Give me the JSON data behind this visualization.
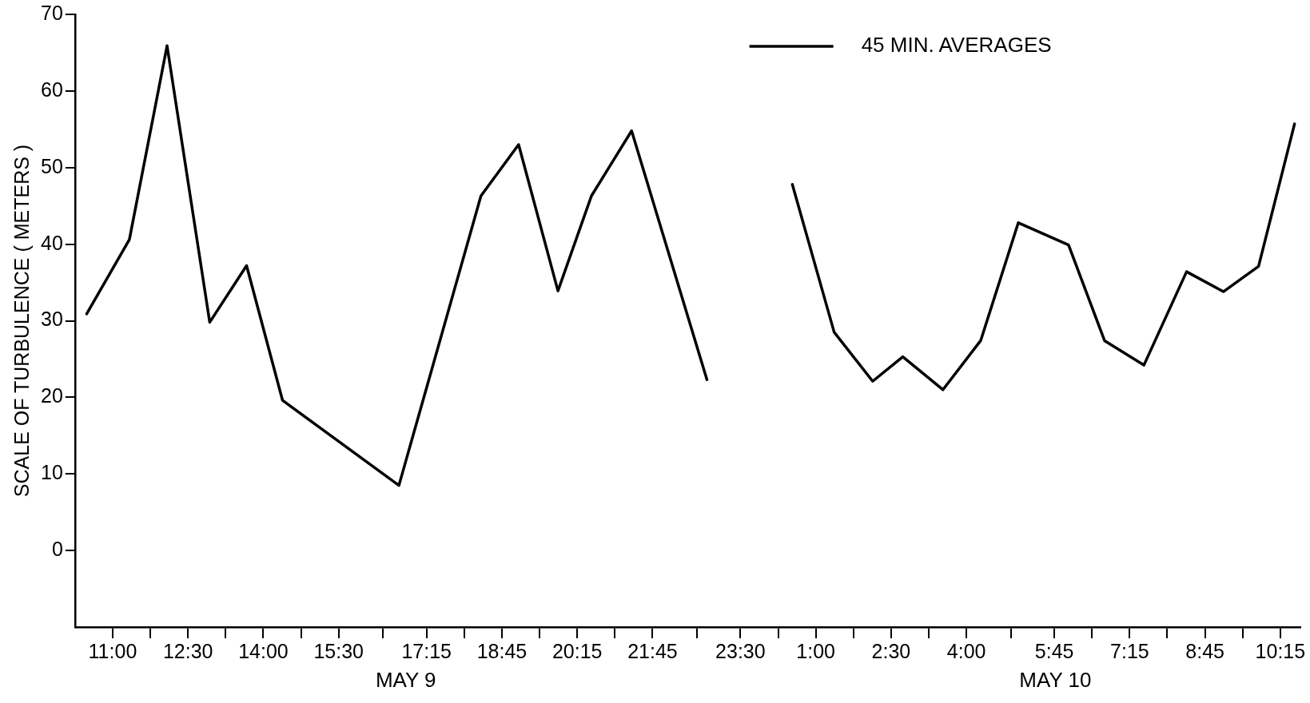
{
  "chart_data": {
    "type": "line",
    "ylabel": "SCALE OF TURBULENCE ( METERS )",
    "annotations": [
      "MAY 9",
      "MAY 10"
    ],
    "x": [
      "--05-09T10:29",
      "--05-09T11:20",
      "--05-09T12:05",
      "--05-09T12:56",
      "--05-09T13:40",
      "--05-09T14:23",
      "--05-09T16:42",
      "--05-09T18:20",
      "--05-09T19:05",
      "--05-09T19:52",
      "--05-09T20:32",
      "--05-09T21:20",
      "--05-09T22:50",
      "--05-09T23:42",
      "--05-10T00:32",
      "--05-10T01:22",
      "--05-10T02:08",
      "--05-10T02:44",
      "--05-10T03:32",
      "--05-10T04:17",
      "--05-10T05:02",
      "--05-10T06:02",
      "--05-10T06:45",
      "--05-10T07:32",
      "--05-10T08:23",
      "--05-10T09:07",
      "--05-10T09:49",
      "--05-10T10:32"
    ],
    "series": [
      {
        "name": "45 MIN. AVERAGES",
        "color": "#000000",
        "values": [
          30.9,
          40.6,
          65.9,
          29.8,
          37.2,
          19.6,
          8.5,
          46.3,
          53,
          33.9,
          46.3,
          54.8,
          22.3,
          null,
          47.8,
          28.5,
          22.1,
          25.3,
          21,
          27.4,
          42.8,
          39.9,
          27.4,
          24.2,
          36.4,
          33.8,
          37.1,
          55.7
        ]
      }
    ],
    "xlim": [
      "--05-09T10:15",
      "--05-10T10:39"
    ],
    "xticks": [
      {
        "value": "--05-09T11:00",
        "label": "11:00"
      },
      {
        "value": "--05-09T11:45",
        "label": null
      },
      {
        "value": "--05-09T12:30",
        "label": "12:30"
      },
      {
        "value": "--05-09T13:15",
        "label": null
      },
      {
        "value": "--05-09T14:00",
        "label": "14:00"
      },
      {
        "value": "--05-09T14:45",
        "label": null
      },
      {
        "value": "--05-09T15:30",
        "label": "15:30"
      },
      {
        "value": "--05-09T16:23",
        "label": null
      },
      {
        "value": "--05-09T17:15",
        "label": "17:15"
      },
      {
        "value": "--05-09T18:00",
        "label": null
      },
      {
        "value": "--05-09T18:45",
        "label": "18:45"
      },
      {
        "value": "--05-09T19:30",
        "label": null
      },
      {
        "value": "--05-09T20:15",
        "label": "20:15"
      },
      {
        "value": "--05-09T21:00",
        "label": null
      },
      {
        "value": "--05-09T21:45",
        "label": "21:45"
      },
      {
        "value": "--05-09T22:38",
        "label": null
      },
      {
        "value": "--05-09T23:30",
        "label": "23:30"
      },
      {
        "value": "--05-10T00:15",
        "label": null
      },
      {
        "value": "--05-10T01:00",
        "label": "1:00"
      },
      {
        "value": "--05-10T01:45",
        "label": null
      },
      {
        "value": "--05-10T02:30",
        "label": "2:30"
      },
      {
        "value": "--05-10T03:15",
        "label": null
      },
      {
        "value": "--05-10T04:00",
        "label": "4:00"
      },
      {
        "value": "--05-10T04:53",
        "label": null
      },
      {
        "value": "--05-10T05:45",
        "label": "5:45"
      },
      {
        "value": "--05-10T06:30",
        "label": null
      },
      {
        "value": "--05-10T07:15",
        "label": "7:15"
      },
      {
        "value": "--05-10T08:00",
        "label": null
      },
      {
        "value": "--05-10T08:45",
        "label": "8:45"
      },
      {
        "value": "--05-10T09:30",
        "label": null
      },
      {
        "value": "--05-10T10:15",
        "label": "10:15"
      }
    ],
    "ylim": [
      -10,
      70
    ],
    "yticks": [
      0,
      10,
      20,
      30,
      40,
      50,
      60,
      70
    ],
    "grid": false,
    "legend": "top right",
    "marker": "none",
    "line_style": "solid"
  }
}
